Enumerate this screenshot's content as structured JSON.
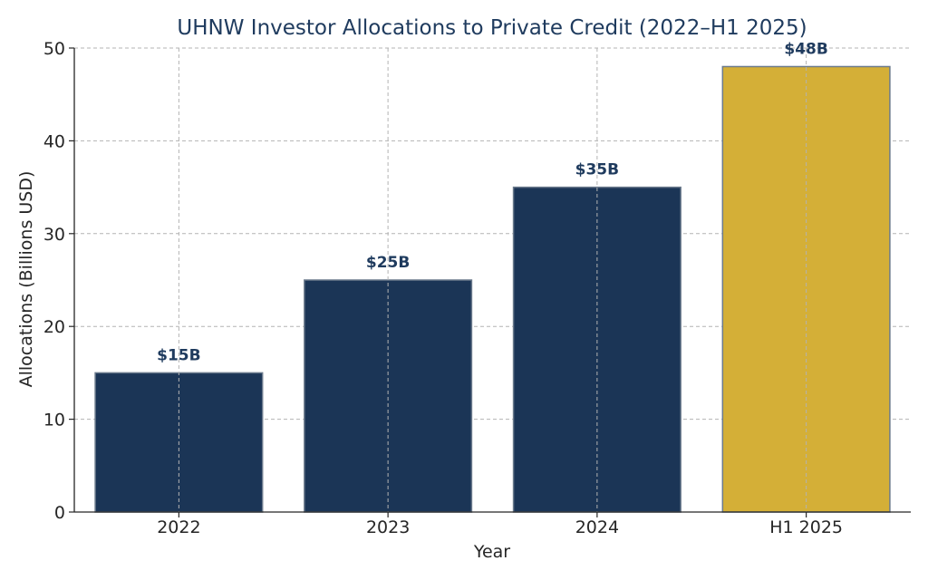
{
  "chart_data": {
    "type": "bar",
    "title": "UHNW Investor Allocations to Private Credit (2022–H1 2025)",
    "xlabel": "Year",
    "ylabel": "Allocations (Billions USD)",
    "categories": [
      "2022",
      "2023",
      "2024",
      "H1 2025"
    ],
    "values": [
      15,
      25,
      35,
      48
    ],
    "data_labels": [
      "$15B",
      "$25B",
      "$35B",
      "$48B"
    ],
    "bar_colors": [
      "#1b3556",
      "#1b3556",
      "#1b3556",
      "#d4af37"
    ],
    "bar_edge_color": "#6b7a8c",
    "ylim": [
      0,
      50
    ],
    "yticks": [
      0,
      10,
      20,
      30,
      40,
      50
    ],
    "grid": true,
    "legend": "none"
  }
}
